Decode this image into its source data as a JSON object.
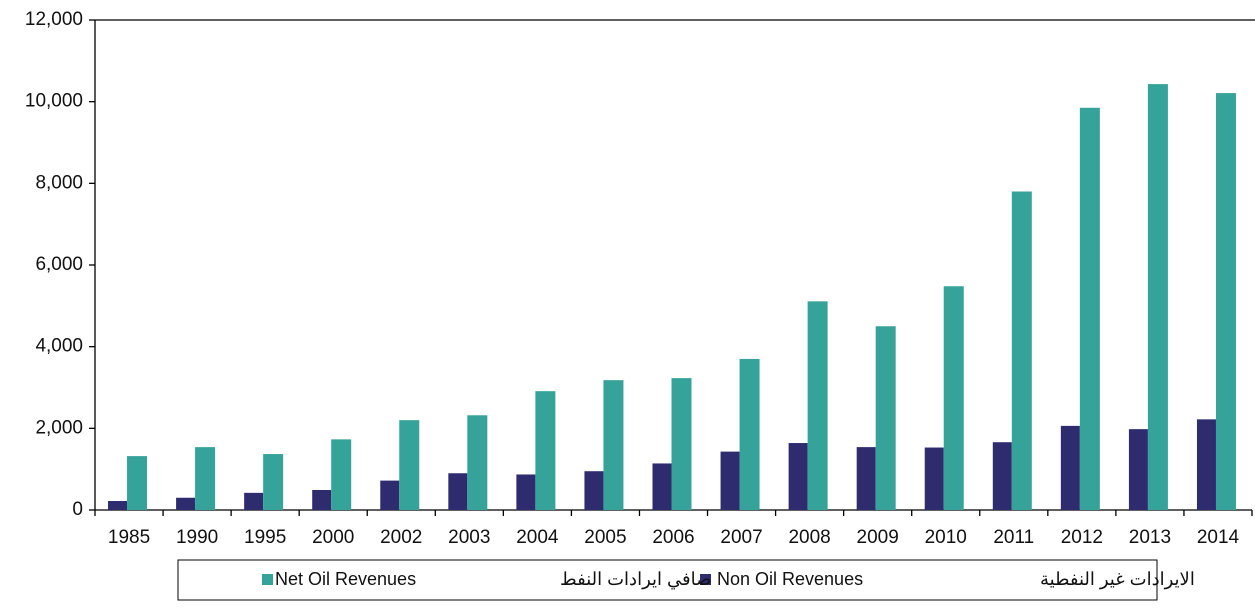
{
  "chart_data": {
    "type": "bar",
    "categories": [
      "1985",
      "1990",
      "1995",
      "2000",
      "2002",
      "2003",
      "2004",
      "2005",
      "2006",
      "2007",
      "2008",
      "2009",
      "2010",
      "2011",
      "2012",
      "2013",
      "2014"
    ],
    "series": [
      {
        "name": "Non Oil Revenues",
        "name_ar": "الايرادات غير النفطية",
        "color": "#2e2b6f",
        "values": [
          220,
          300,
          420,
          490,
          720,
          900,
          870,
          950,
          1140,
          1430,
          1640,
          1540,
          1530,
          1660,
          2060,
          1980,
          2220
        ]
      },
      {
        "name": "Net Oil Revenues",
        "name_ar": "صافي ايرادات النفط",
        "color": "#36a39a",
        "values": [
          1320,
          1540,
          1370,
          1730,
          2200,
          2320,
          2910,
          3180,
          3230,
          3700,
          5110,
          4500,
          5480,
          7800,
          9850,
          10430,
          10210
        ]
      }
    ],
    "ylim": [
      0,
      12000
    ],
    "yticks": [
      0,
      {
        "value": 2000,
        "label": "2,000"
      },
      {
        "value": 4000,
        "label": "4,000"
      },
      {
        "value": 6000,
        "label": "6,000"
      },
      {
        "value": 8000,
        "label": "8,000"
      },
      {
        "value": 10000,
        "label": "10,000"
      },
      {
        "value": 12000,
        "label": "12,000"
      }
    ]
  }
}
